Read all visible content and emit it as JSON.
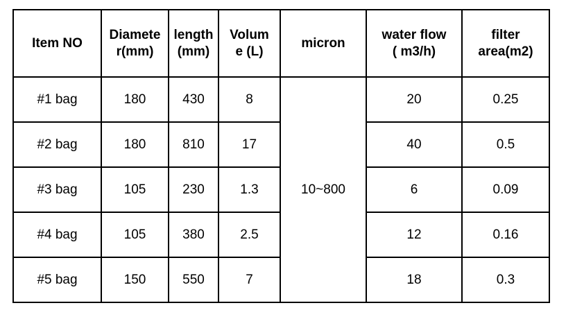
{
  "table": {
    "header": [
      [
        "Item NO"
      ],
      [
        "Diamete",
        "r(mm)"
      ],
      [
        "length",
        "(mm)"
      ],
      [
        "Volum",
        "e (L)"
      ],
      [
        "micron"
      ],
      [
        "water flow",
        "( m3/h)"
      ],
      [
        "filter",
        "area(m2)"
      ]
    ],
    "micron": "10~800",
    "rows": [
      [
        "#1 bag",
        "180",
        "430",
        "8",
        "20",
        "0.25"
      ],
      [
        "#2 bag",
        "180",
        "810",
        "17",
        "40",
        "0.5"
      ],
      [
        "#3 bag",
        "105",
        "230",
        "1.3",
        "6",
        "0.09"
      ],
      [
        "#4 bag",
        "105",
        "380",
        "2.5",
        "12",
        "0.16"
      ],
      [
        "#5 bag",
        "150",
        "550",
        "7",
        "18",
        "0.3"
      ]
    ]
  }
}
